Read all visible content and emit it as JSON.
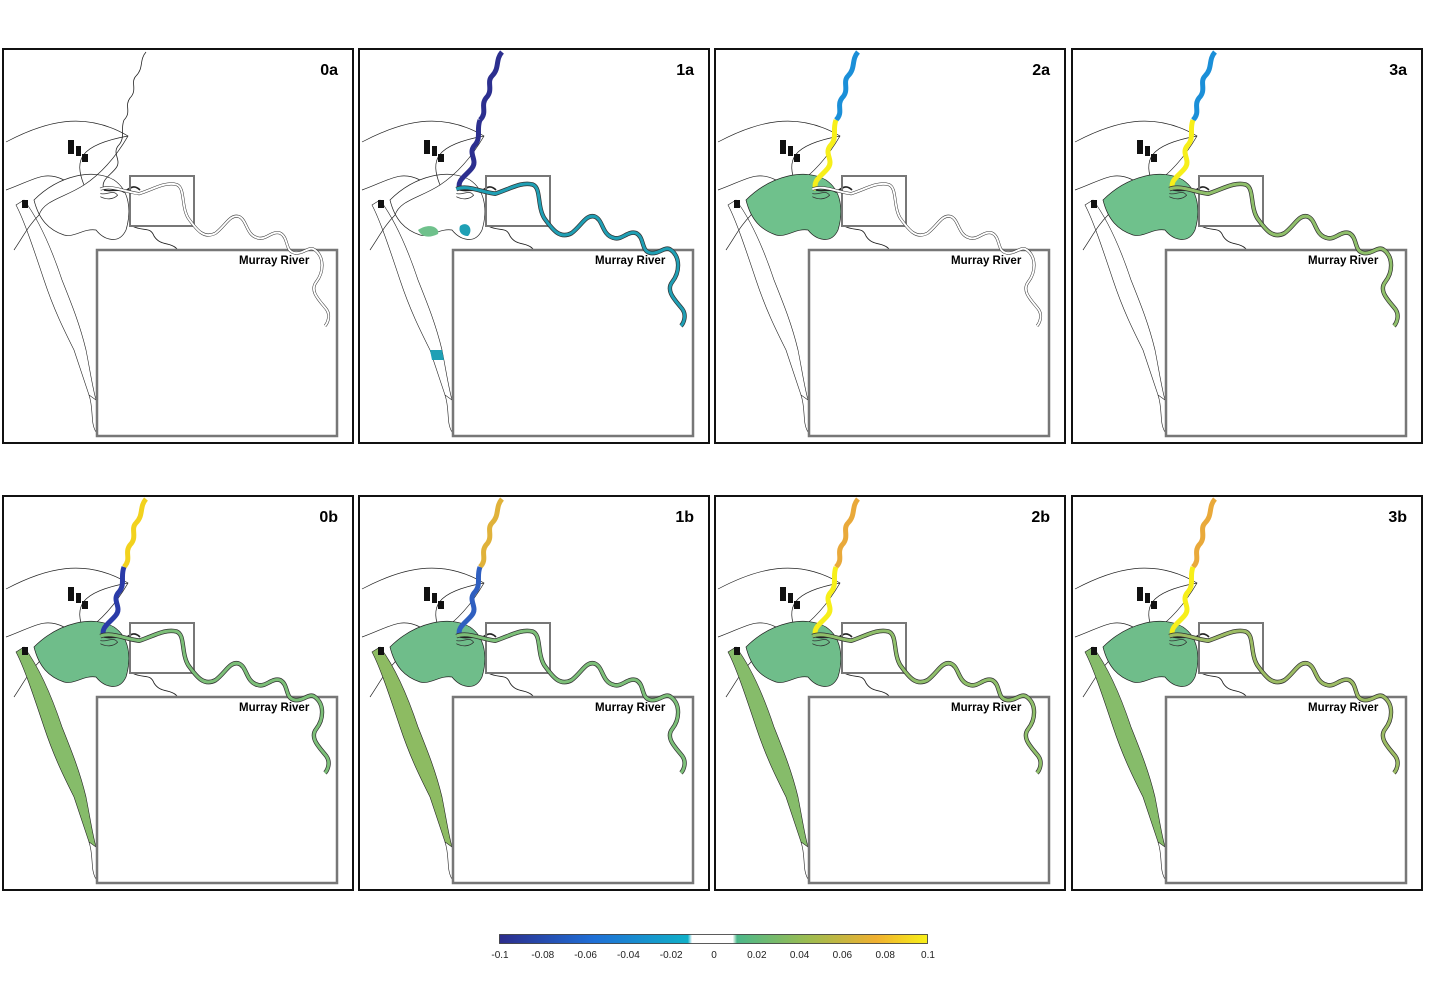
{
  "panels": [
    {
      "label": "0a",
      "inset_title": "Murray River",
      "fills": {
        "river_upper": "none",
        "river_lower": "none",
        "lake": "none",
        "coorong": "none",
        "inset": "none"
      }
    },
    {
      "label": "1a",
      "inset_title": "Murray River",
      "fills": {
        "river_upper": "#2c2f8f",
        "river_lower": "#2c2f8f",
        "lake": "spots",
        "coorong": "mouth",
        "inset": "#1f9fb4"
      }
    },
    {
      "label": "2a",
      "inset_title": "Murray River",
      "fills": {
        "river_upper": "#1b8fd8",
        "river_lower": "#f7ef1a",
        "lake": "#6fc18c",
        "coorong": "none",
        "inset": "none"
      }
    },
    {
      "label": "3a",
      "inset_title": "Murray River",
      "fills": {
        "river_upper": "#1b8fd8",
        "river_lower": "#f7ef1a",
        "lake": "#6fc18c",
        "coorong": "none",
        "inset": "#8fbf6a"
      }
    },
    {
      "label": "0b",
      "inset_title": "Murray River",
      "fills": {
        "river_upper": "#f2d21e",
        "river_lower": "#2a3ba8",
        "lake": "#6fbd8a",
        "coorong": "#86bc6a",
        "inset": "#7cbf78"
      }
    },
    {
      "label": "1b",
      "inset_title": "Murray River",
      "fills": {
        "river_upper": "#e0b23a",
        "river_lower": "#2f5fc0",
        "lake": "#6fbd8a",
        "coorong": "#8dbb62",
        "inset": "#7cbf78"
      }
    },
    {
      "label": "2b",
      "inset_title": "Murray River",
      "fills": {
        "river_upper": "#e9a93a",
        "river_lower": "#f7ef1a",
        "lake": "#6fbd8a",
        "coorong": "#86bc6a",
        "inset": "#8fbf6a"
      }
    },
    {
      "label": "3b",
      "inset_title": "Murray River",
      "fills": {
        "river_upper": "#e9a93a",
        "river_lower": "#f7ef1a",
        "lake": "#6fbd8a",
        "coorong": "#86bc6a",
        "inset": "#9cbc64"
      }
    }
  ],
  "colorbar": {
    "min": -0.1,
    "max": 0.1,
    "ticks": [
      "-0.1",
      "-0.08",
      "-0.06",
      "-0.04",
      "-0.02",
      "0",
      "0.02",
      "0.04",
      "0.06",
      "0.08",
      "0.1"
    ],
    "colors": {
      "neg_start": "#2c2c8c",
      "neg_mid": "#1f6fd6",
      "neg_end": "#10b0c8",
      "zero": "#ffffff",
      "pos_start": "#4cb88a",
      "pos_mid": "#9cbc50",
      "pos_high": "#f0b030",
      "pos_end": "#f8f018"
    }
  }
}
